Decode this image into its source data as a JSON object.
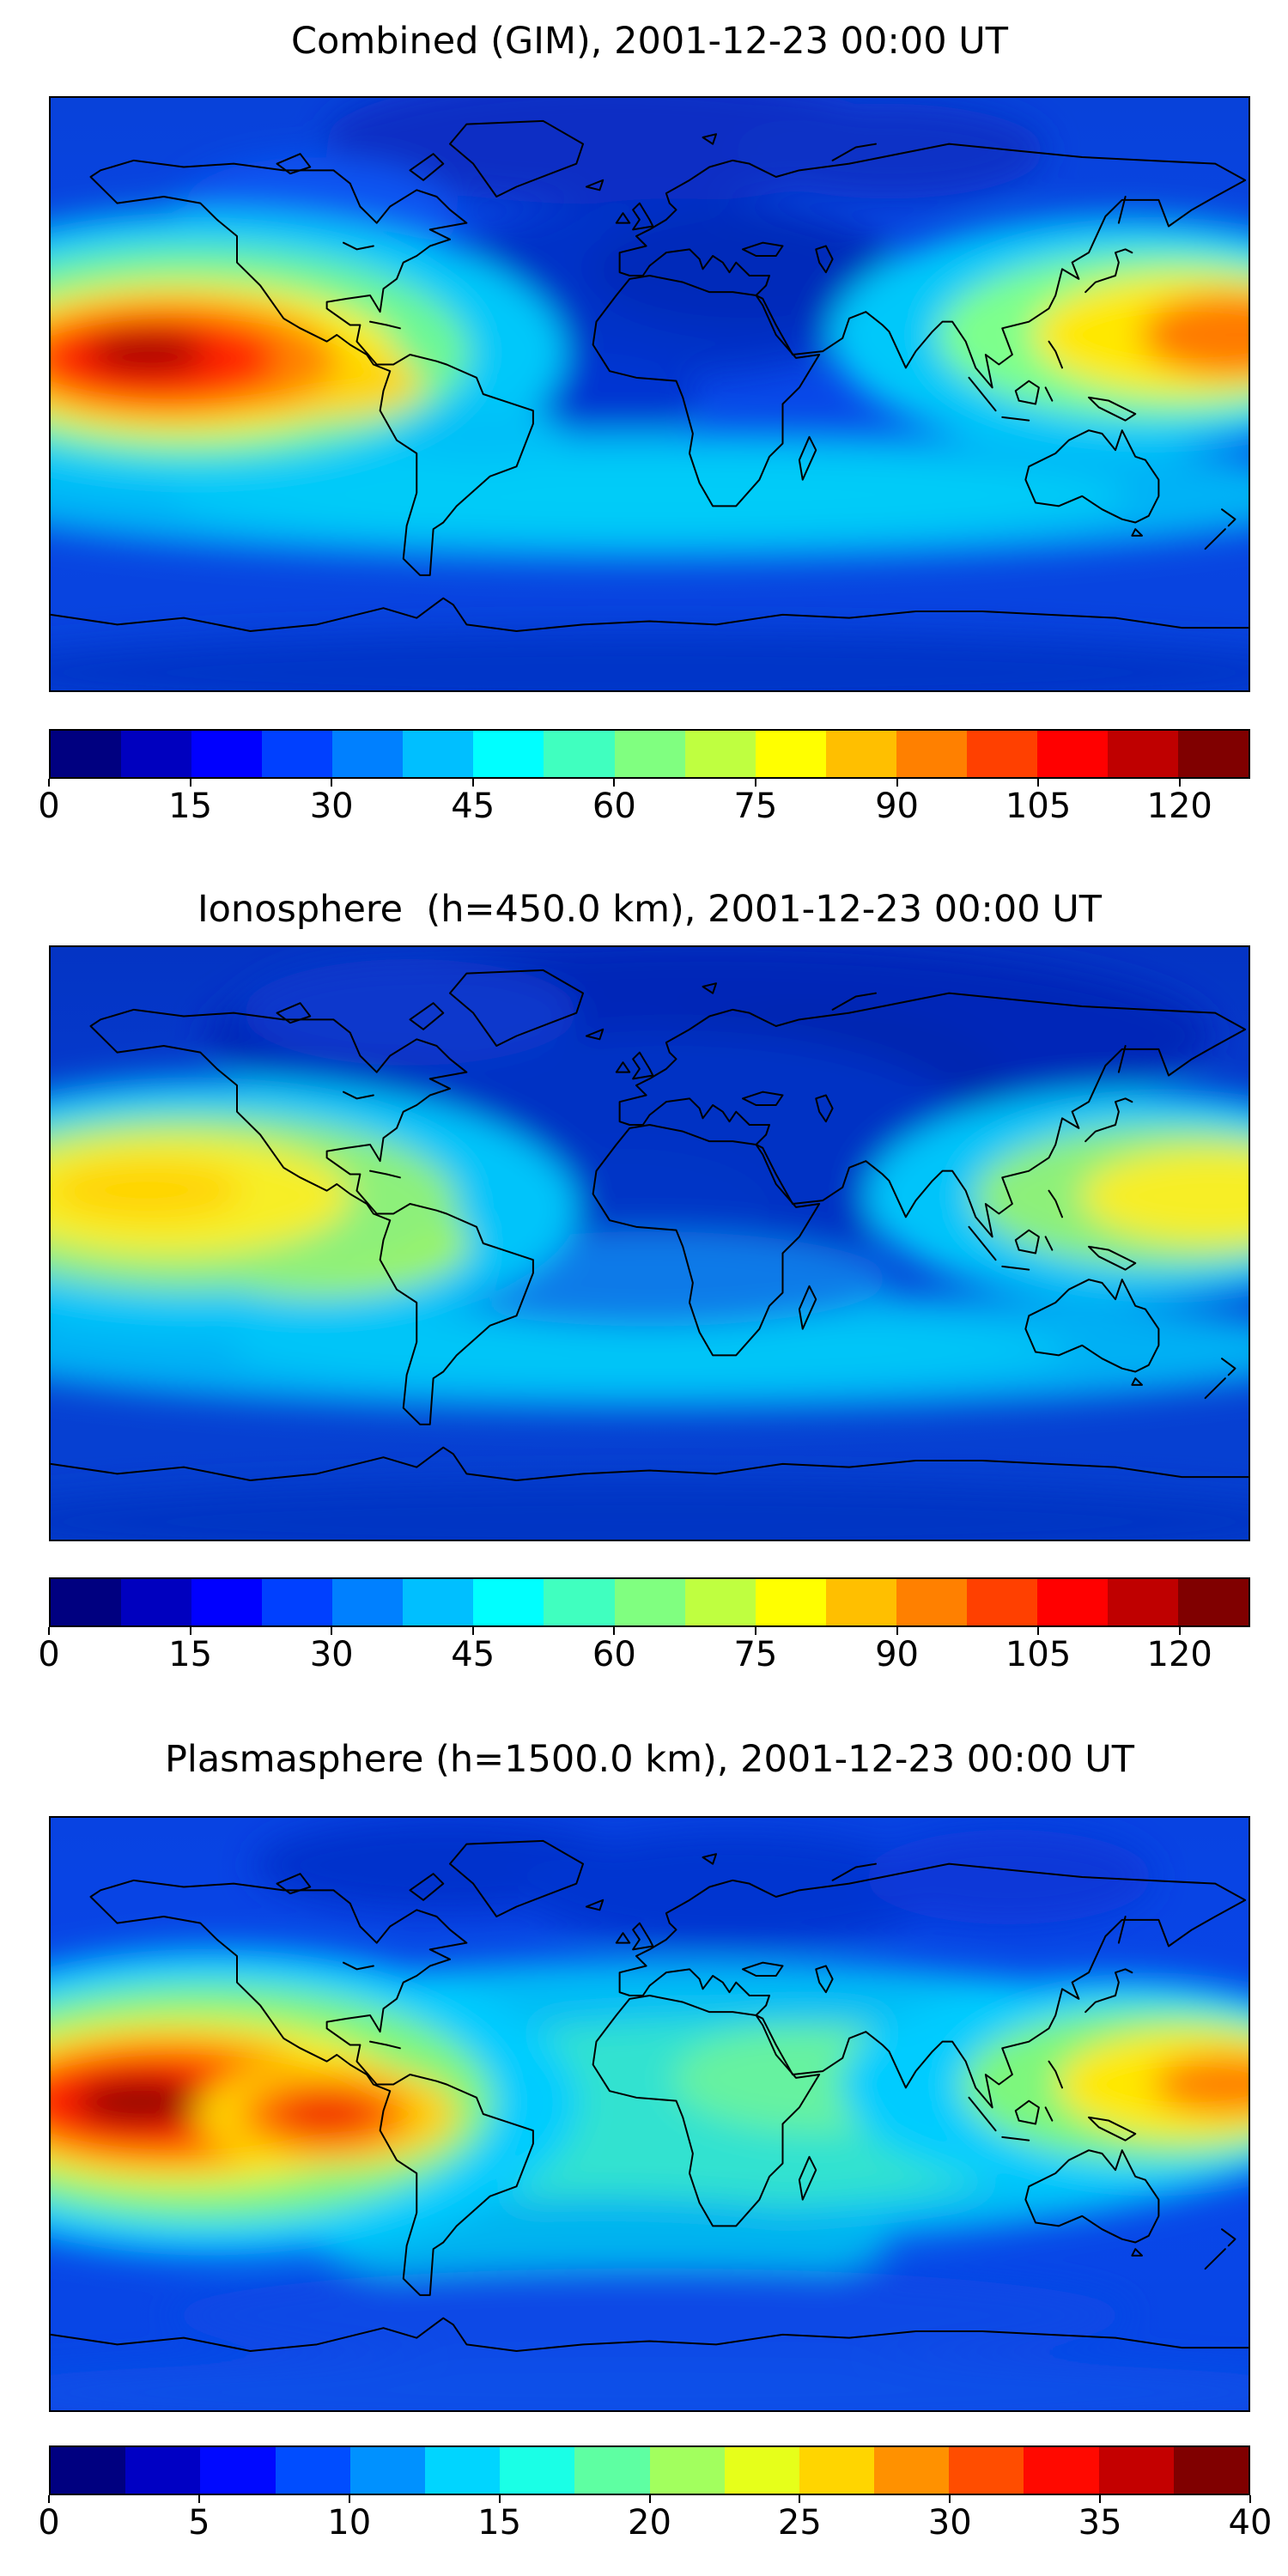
{
  "figure": {
    "background": "#ffffff",
    "panels": [
      {
        "title": "Combined (GIM), 2001-12-23 00:00 UT",
        "colorbar": {
          "vmax": 127.5,
          "ticks": [
            0,
            15,
            30,
            45,
            60,
            75,
            90,
            105,
            120
          ],
          "colors": [
            "#000080",
            "#0000BF",
            "#0000FF",
            "#0040FF",
            "#0080FF",
            "#00BFFF",
            "#00FFFF",
            "#40FFBF",
            "#80FF80",
            "#BFFF40",
            "#FFFF00",
            "#FFBF00",
            "#FF8000",
            "#FF4000",
            "#FF0000",
            "#BF0000",
            "#800000"
          ]
        },
        "field": {
          "base": [
            [
              0,
              "#0842da"
            ],
            [
              0.5,
              "#0847e8"
            ],
            [
              1,
              "#0843dc"
            ]
          ],
          "blobs": [
            [
              47,
              7,
              24,
              11,
              "#0a2ec4"
            ],
            [
              70,
              9,
              13,
              8,
              "#0a30c6"
            ],
            [
              52,
              32,
              20,
              15,
              "#0530c8"
            ],
            [
              58,
              29,
              13,
              10,
              "#0429ba"
            ],
            [
              45,
              51,
              9,
              8,
              "#0636d2"
            ],
            [
              22,
              20,
              12,
              10,
              "#0b55f2"
            ],
            [
              50,
              67,
              58,
              11,
              "#00b2f6"
            ],
            [
              50,
              67,
              40,
              7,
              "#00ccf8"
            ],
            [
              13,
              43,
              30,
              24,
              "#00c8fa"
            ],
            [
              12,
              43,
              23,
              18,
              "#6cf795"
            ],
            [
              11,
              44,
              18,
              13,
              "#fcee00"
            ],
            [
              22,
              48,
              9,
              6,
              "#ffd400"
            ],
            [
              10,
              44,
              14,
              10,
              "#ff8400"
            ],
            [
              9,
              44,
              10,
              7,
              "#ff2200"
            ],
            [
              8,
              43,
              5,
              3.5,
              "#a30000"
            ],
            [
              89,
              40,
              24,
              20,
              "#00c8fa"
            ],
            [
              92,
              40,
              18,
              14,
              "#7dff8c"
            ],
            [
              95,
              40,
              13,
              10,
              "#ffe800"
            ],
            [
              99,
              40,
              8,
              7,
              "#ff7a00"
            ],
            [
              36,
              57,
              7,
              5,
              "#00c0f8"
            ],
            [
              50,
              97,
              58,
              7,
              "#0636c8"
            ]
          ]
        }
      },
      {
        "title": "Ionosphere  (h=450.0 km), 2001-12-23 00:00 UT",
        "colorbar": {
          "vmax": 127.5,
          "ticks": [
            0,
            15,
            30,
            45,
            60,
            75,
            90,
            105,
            120
          ],
          "colors": [
            "#000080",
            "#0000BF",
            "#0000FF",
            "#0040FF",
            "#0080FF",
            "#00BFFF",
            "#00FFFF",
            "#40FFBF",
            "#80FF80",
            "#BFFF40",
            "#FFFF00",
            "#FFBF00",
            "#FF8000",
            "#FF4000",
            "#FF0000",
            "#BF0000",
            "#800000"
          ]
        },
        "field": {
          "base": [
            [
              0,
              "#0434c4"
            ],
            [
              0.55,
              "#0741d6"
            ],
            [
              1,
              "#0640d0"
            ]
          ],
          "blobs": [
            [
              55,
              15,
              42,
              16,
              "#0228b8"
            ],
            [
              62,
              24,
              18,
              14,
              "#0226b0"
            ],
            [
              52,
              34,
              26,
              20,
              "#0330c4"
            ],
            [
              48,
              44,
              12,
              10,
              "#0534c6"
            ],
            [
              30,
              11,
              14,
              9,
              "#0738cc"
            ],
            [
              50,
              68,
              58,
              10,
              "#00b0f4"
            ],
            [
              50,
              68,
              35,
              6,
              "#00c6f8"
            ],
            [
              50,
              56,
              20,
              8,
              "#0a7ae8"
            ],
            [
              14,
              44,
              30,
              22,
              "#00c4fa"
            ],
            [
              22,
              50,
              13,
              9,
              "#9ef55f"
            ],
            [
              12,
              43,
              22,
              15,
              "#8df07a"
            ],
            [
              10,
              42,
              15,
              10,
              "#f7ee27"
            ],
            [
              8,
              41,
              8,
              5,
              "#ffd400"
            ],
            [
              90,
              42,
              22,
              18,
              "#00c4fa"
            ],
            [
              93,
              42,
              16,
              12,
              "#8df07a"
            ],
            [
              97,
              42,
              11,
              8,
              "#f7ee27"
            ],
            [
              50,
              97,
              58,
              7,
              "#0535c4"
            ]
          ]
        }
      },
      {
        "title": "Plasmasphere (h=1500.0 km), 2001-12-23 00:00 UT",
        "colorbar": {
          "vmax": 40,
          "ticks": [
            0,
            5,
            10,
            15,
            20,
            25,
            30,
            35,
            40
          ],
          "colors": [
            "#000080",
            "#0000C4",
            "#0009FF",
            "#004DFF",
            "#0091FF",
            "#00D5FF",
            "#1AFFE6",
            "#5EFFA2",
            "#A2FF5E",
            "#E6FF1A",
            "#FFD500",
            "#FF9100",
            "#FF4D00",
            "#FF0900",
            "#C40000",
            "#800000"
          ]
        },
        "field": {
          "base": [
            [
              0,
              "#0843e2"
            ],
            [
              0.5,
              "#0847ea"
            ],
            [
              1,
              "#0846e4"
            ]
          ],
          "blobs": [
            [
              33,
              8,
              16,
              8,
              "#0530cc"
            ],
            [
              57,
              12,
              18,
              10,
              "#0636d0"
            ],
            [
              80,
              10,
              12,
              8,
              "#0838d8"
            ],
            [
              52,
              48,
              56,
              24,
              "#00bcf6"
            ],
            [
              55,
              50,
              34,
              16,
              "#30e2d0"
            ],
            [
              64,
              44,
              12,
              9,
              "#66f2a0"
            ],
            [
              46,
              72,
              24,
              8,
              "#00b4f0"
            ],
            [
              14,
              48,
              30,
              26,
              "#00ccff"
            ],
            [
              13,
              48,
              24,
              20,
              "#7df77d"
            ],
            [
              11,
              48,
              19,
              14,
              "#fcee00"
            ],
            [
              10,
              48,
              15,
              11,
              "#ff8800"
            ],
            [
              8.5,
              48,
              11,
              8,
              "#ff2200"
            ],
            [
              7.5,
              48,
              5.5,
              4,
              "#910000"
            ],
            [
              23,
              50,
              11,
              9,
              "#ffd000"
            ],
            [
              23,
              50,
              7,
              6,
              "#ff7000"
            ],
            [
              23,
              50,
              4,
              3.5,
              "#f03000"
            ],
            [
              88,
              45,
              22,
              18,
              "#00ccff"
            ],
            [
              92,
              45,
              16,
              13,
              "#7df77d"
            ],
            [
              95,
              45,
              11,
              9,
              "#ffe800"
            ],
            [
              98.5,
              45,
              6.5,
              5,
              "#ff8000"
            ],
            [
              50,
              84,
              40,
              8,
              "#0848e6"
            ],
            [
              50,
              97,
              58,
              6,
              "#0a50e8"
            ]
          ]
        }
      }
    ]
  },
  "chart_data": [
    {
      "type": "heatmap",
      "title": "Combined (GIM), 2001-12-23 00:00 UT",
      "colormap": "jet",
      "projection": "equirectangular world map, lon -180..180, lat -90..90, black coastlines",
      "legend_position": "horizontal colorbar below map",
      "grid": false,
      "colorbar_ticks": [
        0,
        15,
        30,
        45,
        60,
        75,
        90,
        105,
        120
      ],
      "value_range": [
        0,
        127.5
      ],
      "maxima": [
        {
          "region": "south-central Pacific (~150W, 15S)",
          "approx_value": 125,
          "appearance": "dark red core with orange/yellow halo"
        },
        {
          "region": "western Pacific near date line (~175E, 10S)",
          "approx_value": 95,
          "appearance": "orange core at right map edge"
        }
      ],
      "minima": [
        {
          "region": "night side over Europe / central Asia and high northern latitudes",
          "approx_value": 10
        }
      ],
      "other_features": [
        {
          "region": "southern mid-latitude band (lat ~ -30 to -55)",
          "approx_value": 45,
          "appearance": "cyan band across full width"
        }
      ]
    },
    {
      "type": "heatmap",
      "title": "Ionosphere  (h=450.0 km), 2001-12-23 00:00 UT",
      "colormap": "jet",
      "projection": "equirectangular world map, lon -180..180, lat -90..90, black coastlines",
      "legend_position": "horizontal colorbar below map",
      "grid": false,
      "colorbar_ticks": [
        0,
        15,
        30,
        45,
        60,
        75,
        90,
        105,
        120
      ],
      "value_range": [
        0,
        127.5
      ],
      "maxima": [
        {
          "region": "eastern Pacific (~155W, 12S)",
          "approx_value": 95,
          "appearance": "yellow core"
        },
        {
          "region": "far western Pacific at right edge (~178E, 12S)",
          "approx_value": 90,
          "appearance": "yellow core"
        }
      ],
      "minima": [
        {
          "region": "large dark-navy night-side region over Europe, Russia and central Asia",
          "approx_value": 5
        }
      ],
      "other_features": [
        {
          "region": "green/yellow tongue over western South America",
          "approx_value": 70
        },
        {
          "region": "southern mid-latitude cyan band",
          "approx_value": 45
        }
      ]
    },
    {
      "type": "heatmap",
      "title": "Plasmasphere (h=1500.0 km), 2001-12-23 00:00 UT",
      "colormap": "jet",
      "projection": "equirectangular world map, lon -180..180, lat -90..90, black coastlines",
      "legend_position": "horizontal colorbar below map",
      "grid": false,
      "colorbar_ticks": [
        0,
        5,
        10,
        15,
        20,
        25,
        30,
        35,
        40
      ],
      "value_range": [
        0,
        40
      ],
      "maxima": [
        {
          "region": "south-central Pacific (~155W, 8S)",
          "approx_value": 38,
          "appearance": "dark red core"
        },
        {
          "region": "secondary blob west of South America (~105W, 10S)",
          "approx_value": 33,
          "appearance": "red-orange blob"
        },
        {
          "region": "western Pacific at right edge (~178E, 5S)",
          "approx_value": 30,
          "appearance": "orange core"
        }
      ],
      "minima": [
        {
          "region": "high northern latitudes",
          "approx_value": 8
        }
      ],
      "other_features": [
        {
          "region": "broad equatorial band of cyan/green covering most longitudes",
          "approx_value": 18
        }
      ]
    }
  ]
}
